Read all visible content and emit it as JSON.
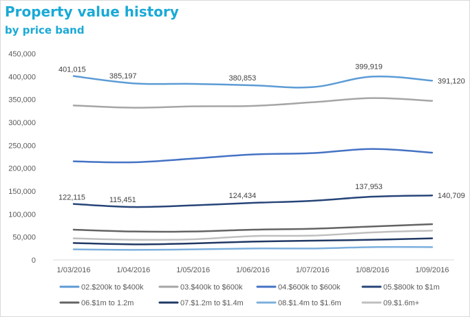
{
  "chart_data": {
    "type": "line",
    "title": "Property value history",
    "subtitle": "by price band",
    "xlabel": "",
    "ylabel": "",
    "categories": [
      "1/03/2016",
      "1/04/2016",
      "1/05/2016",
      "1/06/2016",
      "1/07/2016",
      "1/08/2016",
      "1/09/2016"
    ],
    "ylim": [
      0,
      450000
    ],
    "yticks": [
      0,
      50000,
      100000,
      150000,
      200000,
      250000,
      300000,
      350000,
      400000,
      450000
    ],
    "ytick_labels": [
      "0",
      "50,000",
      "100,000",
      "150,000",
      "200,000",
      "250,000",
      "300,000",
      "350,000",
      "400,000",
      "450,000"
    ],
    "grid": false,
    "legend_position": "bottom",
    "series": [
      {
        "name": "02.$200k to $400k",
        "color": "#5b9bd5",
        "width": 2.5,
        "values": [
          401015,
          385197,
          384000,
          380853,
          377000,
          399919,
          391120
        ],
        "labels": [
          "401,015",
          "385,197",
          "",
          "380,853",
          "",
          "399,919",
          "391,120"
        ]
      },
      {
        "name": "03.$400k to $600k",
        "color": "#a5a5a5",
        "width": 2.5,
        "values": [
          337000,
          332000,
          335000,
          336000,
          344000,
          353000,
          347000
        ],
        "labels": []
      },
      {
        "name": "04.$600k to $600k",
        "color": "#4472c4",
        "width": 2.5,
        "values": [
          215000,
          213000,
          221000,
          230000,
          233000,
          242000,
          234000
        ],
        "labels": []
      },
      {
        "name": "05.$800k to $1m",
        "color": "#264478",
        "width": 2.5,
        "values": [
          122115,
          115451,
          119000,
          124434,
          129000,
          137953,
          140709
        ],
        "labels": [
          "122,115",
          "115,451",
          "",
          "124,434",
          "",
          "137,953",
          "140,709"
        ]
      },
      {
        "name": "06.$1m to 1.2m",
        "color": "#636363",
        "width": 2.5,
        "values": [
          66000,
          62000,
          62000,
          66000,
          68000,
          73000,
          78000
        ],
        "labels": []
      },
      {
        "name": "07.$1.2m to $1.4m",
        "color": "#203864",
        "width": 2.5,
        "values": [
          37000,
          34000,
          36000,
          40000,
          42000,
          44000,
          47000
        ],
        "labels": []
      },
      {
        "name": "08.$1.4m to $1.6m",
        "color": "#7cafdd",
        "width": 2.5,
        "values": [
          23000,
          22000,
          23000,
          25000,
          25000,
          28000,
          28000
        ],
        "labels": []
      },
      {
        "name": "09.$1.6m+",
        "color": "#bfbfbf",
        "width": 2.5,
        "values": [
          47000,
          44000,
          45000,
          52000,
          53000,
          60000,
          64000
        ],
        "labels": []
      }
    ]
  }
}
